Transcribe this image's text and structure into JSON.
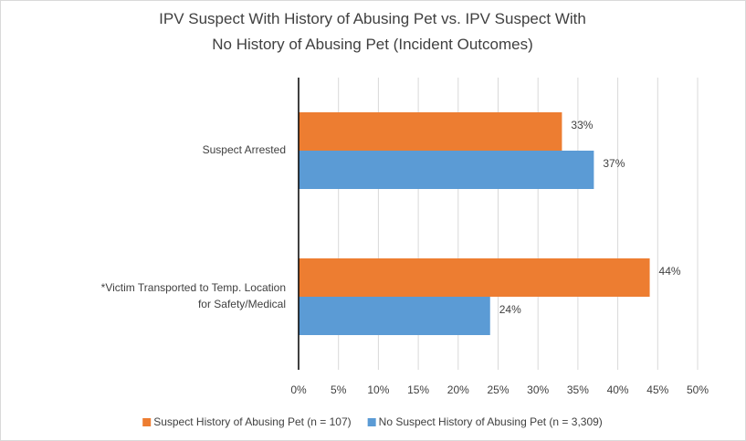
{
  "chart_data": {
    "type": "hbar",
    "title": "IPV Suspect With History of Abusing Pet vs. IPV Suspect With No History of Abusing Pet (Incident Outcomes)",
    "categories": [
      "Suspect Arrested",
      "*Victim Transported to Temp. Location for Safety/Medical"
    ],
    "series": [
      {
        "name": "Suspect History of Abusing Pet (n = 107)",
        "color": "#ed7d31",
        "values": [
          33,
          44
        ],
        "value_labels": [
          "33%",
          "44%"
        ]
      },
      {
        "name": "No Suspect History of Abusing Pet (n = 3,309)",
        "color": "#5b9bd5",
        "values": [
          37,
          24
        ],
        "value_labels": [
          "37%",
          "24%"
        ]
      }
    ],
    "xlim": [
      0,
      50
    ],
    "xticks": [
      {
        "value": 0,
        "label": "0%"
      },
      {
        "value": 5,
        "label": "5%"
      },
      {
        "value": 10,
        "label": "10%"
      },
      {
        "value": 15,
        "label": "15%"
      },
      {
        "value": 20,
        "label": "20%"
      },
      {
        "value": 25,
        "label": "25%"
      },
      {
        "value": 30,
        "label": "30%"
      },
      {
        "value": 35,
        "label": "35%"
      },
      {
        "value": 40,
        "label": "40%"
      },
      {
        "value": 45,
        "label": "45%"
      },
      {
        "value": 50,
        "label": "50%"
      }
    ],
    "grid": true,
    "legend": "bottom"
  }
}
